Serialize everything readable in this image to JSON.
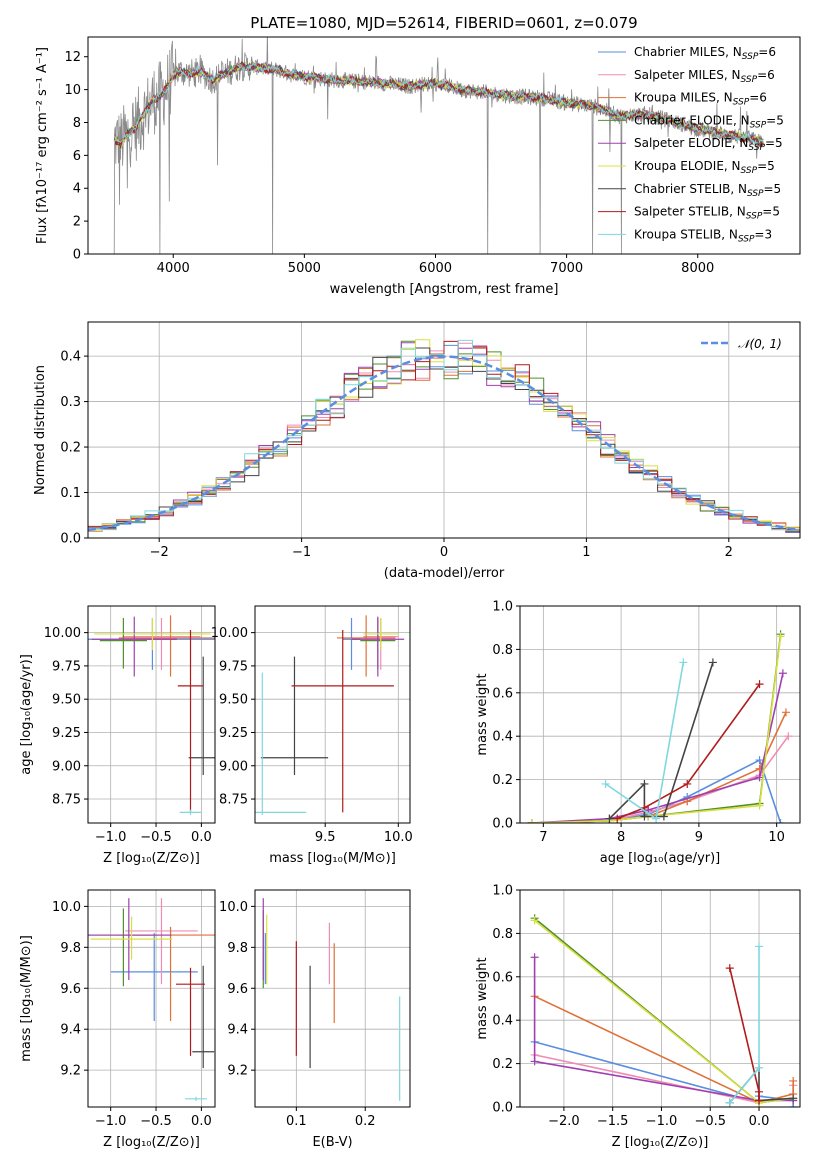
{
  "colors": [
    "#5b8ee0",
    "#f08cb4",
    "#e0703a",
    "#4f8f2f",
    "#a040b0",
    "#d8e040",
    "#444444",
    "#b01c1c",
    "#7fd8e0"
  ],
  "chart_data": [
    {
      "id": "spectrum",
      "type": "line",
      "title": "PLATE=1080, MJD=52614, FIBERID=0601, z=0.079",
      "xlabel": "wavelength [Angstrom, rest frame]",
      "ylabel": "Flux [fλ10⁻¹⁷ erg cm⁻² s⁻¹ A⁻¹]",
      "xlim": [
        3350,
        8780
      ],
      "ylim": [
        0,
        13.2
      ],
      "xticks": [
        "4000",
        "5000",
        "6000",
        "7000",
        "8000"
      ],
      "yticks": [
        "0",
        "2",
        "4",
        "6",
        "8",
        "10",
        "12"
      ],
      "grid": false,
      "legend_position": "right",
      "legend": [
        "Chabrier MILES, N_SSP=6",
        "Salpeter MILES, N_SSP=6",
        "Kroupa MILES, N_SSP=6",
        "Chabrier ELODIE, N_SSP=5",
        "Salpeter ELODIE, N_SSP=5",
        "Kroupa ELODIE, N_SSP=5",
        "Chabrier STELIB, N_SSP=5",
        "Salpeter STELIB, N_SSP=5",
        "Kroupa STELIB, N_SSP=3"
      ],
      "data_color": "#8a8a8a",
      "continuum": {
        "x": [
          3550,
          3600,
          3650,
          3700,
          3750,
          3800,
          3850,
          3900,
          3950,
          4000,
          4050,
          4100,
          4150,
          4200,
          4300,
          4400,
          4500,
          4600,
          4700,
          4800,
          4900,
          5000,
          5200,
          5400,
          5600,
          5800,
          6000,
          6200,
          6400,
          6600,
          6800,
          7000,
          7200,
          7400,
          7600,
          7800,
          8000,
          8200,
          8400,
          8500
        ],
        "y": [
          7.0,
          6.7,
          7.3,
          7.6,
          8.2,
          8.8,
          9.4,
          9.6,
          10.1,
          10.9,
          11.1,
          11.0,
          11.0,
          11.1,
          10.6,
          11.0,
          11.4,
          11.4,
          11.3,
          11.2,
          10.9,
          10.8,
          10.6,
          10.5,
          10.4,
          10.2,
          10.4,
          10.0,
          9.8,
          9.6,
          9.5,
          9.2,
          9.0,
          8.4,
          8.5,
          8.1,
          7.6,
          7.3,
          7.0,
          6.8
        ]
      },
      "absorption_features": [
        {
          "x": 3550,
          "y": 0.0
        },
        {
          "x": 3590,
          "y": 3.0
        },
        {
          "x": 3650,
          "y": 4.0
        },
        {
          "x": 3900,
          "y": 0.0
        },
        {
          "x": 3970,
          "y": 3.2
        },
        {
          "x": 4340,
          "y": 5.4
        },
        {
          "x": 4760,
          "y": 0.0
        },
        {
          "x": 5180,
          "y": 8.2
        },
        {
          "x": 5890,
          "y": 8.6
        },
        {
          "x": 6400,
          "y": 0.0
        },
        {
          "x": 6800,
          "y": 0.0
        },
        {
          "x": 7200,
          "y": 0.0
        },
        {
          "x": 7330,
          "y": 6.2
        },
        {
          "x": 7420,
          "y": 0.0
        },
        {
          "x": 8450,
          "y": 5.8
        }
      ]
    },
    {
      "id": "residuals",
      "type": "histogram",
      "xlabel": "(data-model)/error",
      "ylabel": "Normed distribution",
      "xlim": [
        -2.5,
        2.5
      ],
      "ylim": [
        0,
        0.475
      ],
      "xticks": [
        "−2",
        "−1",
        "0",
        "1",
        "2"
      ],
      "yticks": [
        "0.0",
        "0.1",
        "0.2",
        "0.3",
        "0.4"
      ],
      "grid": true,
      "legend_position": "top-right",
      "legend": [
        "𝒩(0, 1)"
      ],
      "bin_width": 0.1
    },
    {
      "id": "age-vs-Z",
      "type": "errorbar",
      "xlabel": "Z [log₁₀(Z/Z⊙)]",
      "ylabel": "age  [log₁₀(age/yr)]",
      "xlim": [
        -1.25,
        0.15
      ],
      "ylim": [
        8.57,
        10.2
      ],
      "xticks": [
        "−1.0",
        "−0.5",
        "0.0"
      ],
      "yticks": [
        "8.75",
        "9.00",
        "9.25",
        "9.50",
        "9.75",
        "10.00"
      ],
      "points": [
        {
          "x": -0.54,
          "y": 9.95,
          "xerr": 0.72,
          "yerr": [
            0.23,
            0.16
          ]
        },
        {
          "x": -0.44,
          "y": 9.97,
          "xerr": 0.43,
          "yerr": [
            0.25,
            0.14
          ]
        },
        {
          "x": -0.34,
          "y": 9.96,
          "xerr": 0.57,
          "yerr": [
            0.29,
            0.17
          ]
        },
        {
          "x": -0.86,
          "y": 9.94,
          "xerr": 0.26,
          "yerr": [
            0.21,
            0.17
          ]
        },
        {
          "x": -0.74,
          "y": 9.95,
          "xerr": 0.47,
          "yerr": [
            0.28,
            0.17
          ]
        },
        {
          "x": -0.54,
          "y": 9.99,
          "xerr": 0.64,
          "yerr": [
            0.12,
            0.12
          ]
        },
        {
          "x": 0.02,
          "y": 9.06,
          "xerr": 0.16,
          "yerr": [
            0.13,
            0.76
          ]
        },
        {
          "x": -0.12,
          "y": 9.6,
          "xerr": 0.14,
          "yerr": [
            0.95,
            0.42
          ]
        },
        {
          "x": -0.12,
          "y": 8.65,
          "xerr": 0.12,
          "yerr": [
            0.02,
            0.02
          ]
        }
      ]
    },
    {
      "id": "age-vs-mass",
      "type": "errorbar",
      "xlabel": "mass [log₁₀(M/M⊙)]",
      "ylabel": "",
      "xlim": [
        9.02,
        10.08
      ],
      "ylim": [
        8.57,
        10.2
      ],
      "xticks": [
        "9.5",
        "10.0"
      ],
      "yticks": [
        "8.75",
        "9.00",
        "9.25",
        "9.50",
        "9.75",
        "10.00"
      ],
      "points": [
        {
          "x": 9.68,
          "y": 9.95,
          "xerr": 0.06,
          "yerr": [
            0.23,
            0.16
          ]
        },
        {
          "x": 9.88,
          "y": 9.97,
          "xerr": 0.12,
          "yerr": [
            0.25,
            0.14
          ]
        },
        {
          "x": 9.78,
          "y": 9.96,
          "xerr": 0.2,
          "yerr": [
            0.29,
            0.17
          ]
        },
        {
          "x": 9.86,
          "y": 9.94,
          "xerr": 0.12,
          "yerr": [
            0.21,
            0.17
          ]
        },
        {
          "x": 9.86,
          "y": 9.95,
          "xerr": 0.18,
          "yerr": [
            0.28,
            0.17
          ]
        },
        {
          "x": 9.88,
          "y": 9.99,
          "xerr": 0.12,
          "yerr": [
            0.12,
            0.12
          ]
        },
        {
          "x": 9.29,
          "y": 9.06,
          "xerr": 0.23,
          "yerr": [
            0.13,
            0.76
          ]
        },
        {
          "x": 9.62,
          "y": 9.6,
          "xerr": 0.35,
          "yerr": [
            0.95,
            0.42
          ]
        },
        {
          "x": 9.07,
          "y": 8.65,
          "xerr": 0.3,
          "yerr": [
            0.02,
            1.05
          ]
        }
      ]
    },
    {
      "id": "weight-vs-age",
      "type": "line",
      "xlabel": "age  [log₁₀(age/yr)]",
      "ylabel": "mass weight",
      "xlim": [
        6.7,
        10.3
      ],
      "ylim": [
        0,
        1.0
      ],
      "xticks": [
        "7",
        "8",
        "9",
        "10"
      ],
      "yticks": [
        "0.0",
        "0.2",
        "0.4",
        "0.6",
        "0.8",
        "1.0"
      ],
      "grid": true,
      "series": [
        {
          "x": [
            6.85,
            7.85,
            8.35,
            8.85,
            9.78,
            10.05
          ],
          "y": [
            0.0,
            0.01,
            0.04,
            0.12,
            0.29,
            0.0
          ]
        },
        {
          "x": [
            6.85,
            7.85,
            8.35,
            8.85,
            9.78,
            10.15
          ],
          "y": [
            0.0,
            0.01,
            0.05,
            0.1,
            0.22,
            0.4
          ]
        },
        {
          "x": [
            6.85,
            7.85,
            8.35,
            8.85,
            9.78,
            10.12
          ],
          "y": [
            0.0,
            0.01,
            0.03,
            0.1,
            0.25,
            0.51
          ]
        },
        {
          "x": [
            6.85,
            7.85,
            8.35,
            9.78,
            10.05
          ],
          "y": [
            0.0,
            0.01,
            0.03,
            0.09,
            0.87
          ]
        },
        {
          "x": [
            6.85,
            7.85,
            8.35,
            9.78,
            10.08
          ],
          "y": [
            0.0,
            0.02,
            0.06,
            0.21,
            0.69
          ]
        },
        {
          "x": [
            6.85,
            7.85,
            8.35,
            9.78,
            10.05
          ],
          "y": [
            0.0,
            0.01,
            0.03,
            0.08,
            0.86
          ]
        },
        {
          "x": [
            7.85,
            8.3,
            8.3,
            8.55,
            9.18
          ],
          "y": [
            0.02,
            0.18,
            0.03,
            0.03,
            0.74
          ]
        },
        {
          "x": [
            7.95,
            8.3,
            8.85,
            9.78
          ],
          "y": [
            0.02,
            0.07,
            0.18,
            0.64
          ]
        },
        {
          "x": [
            7.8,
            8.45,
            8.8
          ],
          "y": [
            0.18,
            0.02,
            0.74
          ]
        }
      ]
    },
    {
      "id": "mass-vs-Z",
      "type": "errorbar",
      "xlabel": "Z [log₁₀(Z/Z⊙)]",
      "ylabel": "mass [log₁₀(M/M⊙)]",
      "xlim": [
        -1.25,
        0.15
      ],
      "ylim": [
        9.02,
        10.08
      ],
      "xticks": [
        "−1.0",
        "−0.5",
        "0.0"
      ],
      "yticks": [
        "9.2",
        "9.4",
        "9.6",
        "9.8",
        "10.0"
      ],
      "points": [
        {
          "x": -0.52,
          "y": 9.68,
          "xerr": 0.48,
          "yerr": [
            0.24,
            0.19
          ]
        },
        {
          "x": -0.44,
          "y": 9.88,
          "xerr": 0.4,
          "yerr": [
            0.26,
            0.16
          ]
        },
        {
          "x": -0.34,
          "y": 9.86,
          "xerr": 0.57,
          "yerr": [
            0.42,
            0.04
          ]
        },
        {
          "x": -0.86,
          "y": 9.86,
          "xerr": 0.38,
          "yerr": [
            0.25,
            0.13
          ]
        },
        {
          "x": -0.8,
          "y": 9.86,
          "xerr": 0.47,
          "yerr": [
            0.22,
            0.18
          ]
        },
        {
          "x": -0.77,
          "y": 9.84,
          "xerr": 0.45,
          "yerr": [
            0.1,
            0.11
          ]
        },
        {
          "x": 0.02,
          "y": 9.29,
          "xerr": 0.12,
          "yerr": [
            0.08,
            0.42
          ]
        },
        {
          "x": -0.12,
          "y": 9.62,
          "xerr": 0.16,
          "yerr": [
            0.35,
            0.08
          ]
        },
        {
          "x": -0.06,
          "y": 9.06,
          "xerr": 0.12,
          "yerr": [
            0.01,
            0.01
          ]
        }
      ]
    },
    {
      "id": "mass-vs-ebv",
      "type": "errorbar",
      "xlabel": "E(B-V)",
      "ylabel": "",
      "xlim": [
        0.04,
        0.265
      ],
      "ylim": [
        9.02,
        10.08
      ],
      "xticks": [
        "0.1",
        "0.2"
      ],
      "yticks": [
        "9.2",
        "9.4",
        "9.6",
        "9.8",
        "10.0"
      ],
      "points": [
        {
          "x": 0.055,
          "y": 9.68,
          "xerr": 0.0,
          "yerr": [
            0.06,
            0.19
          ]
        },
        {
          "x": 0.148,
          "y": 9.8,
          "xerr": 0.0,
          "yerr": [
            0.18,
            0.12
          ]
        },
        {
          "x": 0.155,
          "y": 9.62,
          "xerr": 0.0,
          "yerr": [
            0.19,
            0.2
          ]
        },
        {
          "x": 0.052,
          "y": 9.78,
          "xerr": 0.0,
          "yerr": [
            0.18,
            0.2
          ]
        },
        {
          "x": 0.052,
          "y": 9.86,
          "xerr": 0.0,
          "yerr": [
            0.22,
            0.18
          ]
        },
        {
          "x": 0.057,
          "y": 9.84,
          "xerr": 0.0,
          "yerr": [
            0.22,
            0.12
          ]
        },
        {
          "x": 0.12,
          "y": 9.46,
          "xerr": 0.0,
          "yerr": [
            0.25,
            0.25
          ]
        },
        {
          "x": 0.1,
          "y": 9.55,
          "xerr": 0.0,
          "yerr": [
            0.28,
            0.28
          ]
        },
        {
          "x": 0.25,
          "y": 9.3,
          "xerr": 0.0,
          "yerr": [
            0.25,
            0.26
          ]
        }
      ]
    },
    {
      "id": "weight-vs-Z",
      "type": "line",
      "xlabel": "Z [log₁₀(Z/Z⊙)]",
      "ylabel": "mass weight",
      "xlim": [
        -2.45,
        0.42
      ],
      "ylim": [
        0,
        1.0
      ],
      "xticks": [
        "−2.0",
        "−1.5",
        "−1.0",
        "−0.5",
        "0.0"
      ],
      "yticks": [
        "0.0",
        "0.2",
        "0.4",
        "0.6",
        "0.8",
        "1.0"
      ],
      "grid": true,
      "series": [
        {
          "x": [
            -2.3,
            0.0,
            0.0,
            0.35,
            0.35
          ],
          "y": [
            0.3,
            0.02,
            0.05,
            0.03,
            0.0
          ]
        },
        {
          "x": [
            -2.3,
            0.0,
            0.35,
            0.35
          ],
          "y": [
            0.24,
            0.02,
            0.04,
            0.1
          ]
        },
        {
          "x": [
            -2.3,
            0.0,
            0.35,
            0.35
          ],
          "y": [
            0.51,
            0.02,
            0.06,
            0.12
          ]
        },
        {
          "x": [
            -2.3,
            0.0,
            0.35
          ],
          "y": [
            0.87,
            0.02,
            0.04
          ]
        },
        {
          "x": [
            -2.3,
            -2.3,
            0.0,
            0.35
          ],
          "y": [
            0.69,
            0.21,
            0.03,
            0.03
          ]
        },
        {
          "x": [
            -2.3,
            0.0,
            0.35
          ],
          "y": [
            0.86,
            0.02,
            0.04
          ]
        },
        {
          "x": [
            -0.3,
            0.0,
            0.0,
            0.35
          ],
          "y": [
            0.02,
            0.18,
            0.03,
            0.04
          ]
        },
        {
          "x": [
            -0.3,
            0.0,
            0.0
          ],
          "y": [
            0.64,
            0.07,
            0.03
          ]
        },
        {
          "x": [
            -0.3,
            0.0,
            0.0
          ],
          "y": [
            0.02,
            0.18,
            0.74
          ]
        }
      ]
    }
  ]
}
